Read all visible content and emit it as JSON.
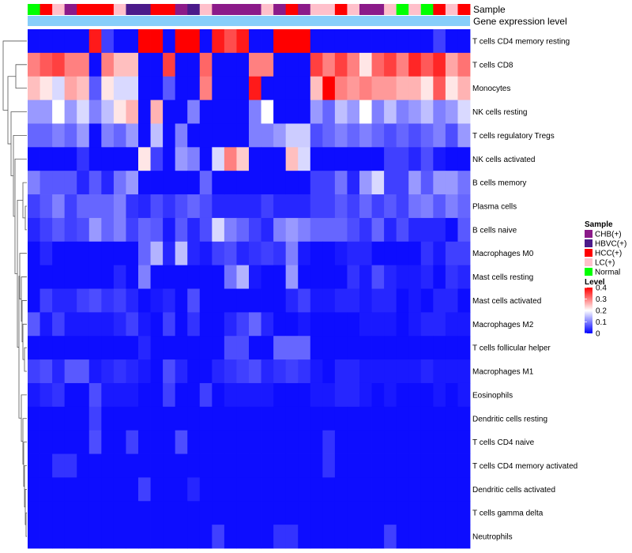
{
  "chart_data": {
    "type": "heatmap",
    "title": "",
    "annotation_labels": [
      "Sample",
      "Gene expression level"
    ],
    "sample_groups": [
      {
        "name": "CHB(+)",
        "color": "#8B1A89"
      },
      {
        "name": "HBVC(+)",
        "color": "#4B1A8A"
      },
      {
        "name": "HCC(+)",
        "color": "#FF0000"
      },
      {
        "name": "LC(+)",
        "color": "#FFC0CB"
      },
      {
        "name": "Normal",
        "color": "#00FF00"
      }
    ],
    "sample_legend_title": "Sample",
    "level_legend_title": "Level",
    "level_ticks": [
      "0.4",
      "0.3",
      "0.2",
      "0.1",
      "0"
    ],
    "level_range": [
      0,
      0.4
    ],
    "level_colors": {
      "low": "#0000FF",
      "mid": "#FFFFFF",
      "high": "#FF0000"
    },
    "expression_bar_color": "#87CEFA",
    "sample_annotation": [
      4,
      2,
      3,
      0,
      2,
      2,
      2,
      3,
      1,
      1,
      2,
      2,
      0,
      1,
      3,
      0,
      0,
      0,
      0,
      3,
      0,
      2,
      0,
      3,
      3,
      2,
      3,
      0,
      0,
      3,
      4,
      3,
      4,
      2,
      3,
      2
    ],
    "rows": [
      "T cells CD4 memory resting",
      "T cells CD8",
      "Monocytes",
      "NK cells resting",
      "T cells regulatory  Tregs",
      "NK cells activated",
      "B cells memory",
      "Plasma cells",
      "B cells naive",
      "Macrophages M0",
      "Mast cells resting",
      "Mast cells activated",
      "Macrophages M2",
      "T cells follicular helper",
      "Macrophages M1",
      "Eosinophils",
      "Dendritic cells resting",
      "T cells CD4 naive",
      "T cells CD4 memory activated",
      "Dendritic cells activated",
      "T cells gamma delta",
      "Neutrophils"
    ],
    "values": [
      [
        0.01,
        0.01,
        0.01,
        0.01,
        0.01,
        0.38,
        0.05,
        0.01,
        0.01,
        0.4,
        0.4,
        0.01,
        0.4,
        0.4,
        0.01,
        0.38,
        0.34,
        0.38,
        0.01,
        0.01,
        0.4,
        0.4,
        0.4,
        0.01,
        0.01,
        0.01,
        0.01,
        0.01,
        0.01,
        0.01,
        0.01,
        0.01,
        0.01,
        0.05,
        0.01,
        0.01
      ],
      [
        0.3,
        0.33,
        0.35,
        0.3,
        0.3,
        0.01,
        0.3,
        0.25,
        0.25,
        0.01,
        0.01,
        0.35,
        0.01,
        0.01,
        0.32,
        0.01,
        0.01,
        0.01,
        0.3,
        0.3,
        0.01,
        0.01,
        0.01,
        0.35,
        0.3,
        0.35,
        0.3,
        0.22,
        0.32,
        0.35,
        0.3,
        0.37,
        0.33,
        0.37,
        0.27,
        0.31
      ],
      [
        0.25,
        0.22,
        0.17,
        0.27,
        0.25,
        0.07,
        0.22,
        0.17,
        0.17,
        0.01,
        0.01,
        0.07,
        0.01,
        0.01,
        0.3,
        0.01,
        0.01,
        0.01,
        0.38,
        0.01,
        0.01,
        0.01,
        0.01,
        0.25,
        0.4,
        0.3,
        0.28,
        0.3,
        0.28,
        0.28,
        0.26,
        0.26,
        0.22,
        0.33,
        0.22,
        0.26
      ],
      [
        0.12,
        0.12,
        0.2,
        0.12,
        0.17,
        0.1,
        0.15,
        0.22,
        0.26,
        0.01,
        0.26,
        0.01,
        0.01,
        0.1,
        0.01,
        0.01,
        0.01,
        0.01,
        0.1,
        0.2,
        0.01,
        0.01,
        0.01,
        0.12,
        0.08,
        0.15,
        0.12,
        0.2,
        0.1,
        0.15,
        0.1,
        0.12,
        0.15,
        0.1,
        0.12,
        0.17
      ],
      [
        0.08,
        0.08,
        0.1,
        0.08,
        0.12,
        0.01,
        0.1,
        0.08,
        0.12,
        0.01,
        0.15,
        0.01,
        0.1,
        0.01,
        0.01,
        0.01,
        0.01,
        0.01,
        0.1,
        0.1,
        0.12,
        0.16,
        0.16,
        0.06,
        0.08,
        0.1,
        0.08,
        0.1,
        0.08,
        0.06,
        0.08,
        0.06,
        0.08,
        0.1,
        0.06,
        0.12
      ],
      [
        0.01,
        0.01,
        0.01,
        0.01,
        0.04,
        0.01,
        0.01,
        0.01,
        0.01,
        0.22,
        0.05,
        0.01,
        0.12,
        0.1,
        0.01,
        0.17,
        0.3,
        0.24,
        0.01,
        0.01,
        0.01,
        0.25,
        0.17,
        0.01,
        0.01,
        0.01,
        0.01,
        0.01,
        0.01,
        0.05,
        0.05,
        0.03,
        0.06,
        0.02,
        0.01,
        0.01
      ],
      [
        0.1,
        0.07,
        0.07,
        0.07,
        0.03,
        0.07,
        0.03,
        0.09,
        0.12,
        0.01,
        0.01,
        0.01,
        0.01,
        0.01,
        0.08,
        0.01,
        0.01,
        0.01,
        0.01,
        0.01,
        0.01,
        0.01,
        0.01,
        0.05,
        0.05,
        0.09,
        0.03,
        0.12,
        0.17,
        0.05,
        0.05,
        0.12,
        0.07,
        0.12,
        0.12,
        0.09
      ],
      [
        0.05,
        0.07,
        0.1,
        0.05,
        0.08,
        0.08,
        0.08,
        0.1,
        0.04,
        0.03,
        0.06,
        0.04,
        0.06,
        0.08,
        0.06,
        0.03,
        0.03,
        0.03,
        0.03,
        0.05,
        0.03,
        0.03,
        0.03,
        0.05,
        0.05,
        0.07,
        0.05,
        0.08,
        0.05,
        0.07,
        0.05,
        0.09,
        0.1,
        0.07,
        0.1,
        0.08
      ],
      [
        0.03,
        0.05,
        0.07,
        0.05,
        0.06,
        0.12,
        0.08,
        0.1,
        0.05,
        0.08,
        0.07,
        0.02,
        0.07,
        0.03,
        0.06,
        0.17,
        0.1,
        0.08,
        0.05,
        0.03,
        0.1,
        0.12,
        0.1,
        0.08,
        0.08,
        0.08,
        0.06,
        0.04,
        0.08,
        0.03,
        0.06,
        0.03,
        0.03,
        0.03,
        0.01,
        0.07
      ],
      [
        0.01,
        0.03,
        0.01,
        0.01,
        0.01,
        0.01,
        0.01,
        0.01,
        0.01,
        0.08,
        0.14,
        0.03,
        0.15,
        0.03,
        0.02,
        0.05,
        0.06,
        0.03,
        0.04,
        0.05,
        0.04,
        0.1,
        0.02,
        0.01,
        0.01,
        0.02,
        0.03,
        0.03,
        0.01,
        0.01,
        0.01,
        0.01,
        0.04,
        0.02,
        0.05,
        0.05
      ],
      [
        0.01,
        0.01,
        0.01,
        0.01,
        0.01,
        0.01,
        0.01,
        0.03,
        0.01,
        0.1,
        0.01,
        0.01,
        0.01,
        0.01,
        0.01,
        0.01,
        0.09,
        0.14,
        0.02,
        0.01,
        0.01,
        0.12,
        0.01,
        0.01,
        0.01,
        0.01,
        0.04,
        0.02,
        0.06,
        0.03,
        0.02,
        0.02,
        0.03,
        0.01,
        0.04,
        0.03
      ],
      [
        0.01,
        0.05,
        0.03,
        0.03,
        0.05,
        0.06,
        0.04,
        0.05,
        0.03,
        0.01,
        0.02,
        0.03,
        0.01,
        0.06,
        0.01,
        0.01,
        0.01,
        0.01,
        0.01,
        0.01,
        0.01,
        0.03,
        0.05,
        0.02,
        0.02,
        0.03,
        0.03,
        0.02,
        0.03,
        0.03,
        0.01,
        0.02,
        0.01,
        0.03,
        0.03,
        0.01
      ],
      [
        0.07,
        0.02,
        0.05,
        0.02,
        0.02,
        0.02,
        0.02,
        0.03,
        0.05,
        0.02,
        0.01,
        0.05,
        0.01,
        0.04,
        0.01,
        0.01,
        0.03,
        0.05,
        0.08,
        0.03,
        0.01,
        0.01,
        0.02,
        0.01,
        0.01,
        0.01,
        0.01,
        0.02,
        0.02,
        0.02,
        0.01,
        0.02,
        0.03,
        0.03,
        0.02,
        0.02
      ],
      [
        0.01,
        0.01,
        0.01,
        0.01,
        0.01,
        0.01,
        0.01,
        0.01,
        0.01,
        0.03,
        0.01,
        0.01,
        0.01,
        0.01,
        0.01,
        0.01,
        0.06,
        0.06,
        0.01,
        0.01,
        0.08,
        0.08,
        0.08,
        0.01,
        0.01,
        0.01,
        0.01,
        0.01,
        0.01,
        0.01,
        0.01,
        0.01,
        0.01,
        0.01,
        0.01,
        0.01
      ],
      [
        0.05,
        0.06,
        0.03,
        0.07,
        0.07,
        0.02,
        0.03,
        0.04,
        0.03,
        0.02,
        0.01,
        0.06,
        0.03,
        0.01,
        0.01,
        0.03,
        0.04,
        0.05,
        0.06,
        0.03,
        0.04,
        0.05,
        0.04,
        0.02,
        0.01,
        0.03,
        0.03,
        0.02,
        0.02,
        0.02,
        0.02,
        0.02,
        0.03,
        0.02,
        0.02,
        0.02
      ],
      [
        0.02,
        0.03,
        0.04,
        0.01,
        0.01,
        0.06,
        0.02,
        0.02,
        0.02,
        0.01,
        0.01,
        0.05,
        0.01,
        0.01,
        0.05,
        0.01,
        0.02,
        0.02,
        0.02,
        0.02,
        0.01,
        0.01,
        0.01,
        0.02,
        0.02,
        0.03,
        0.03,
        0.02,
        0.01,
        0.02,
        0.01,
        0.01,
        0.01,
        0.02,
        0.01,
        0.02
      ],
      [
        0.01,
        0.01,
        0.01,
        0.01,
        0.01,
        0.05,
        0.01,
        0.01,
        0.01,
        0.01,
        0.01,
        0.01,
        0.01,
        0.01,
        0.01,
        0.01,
        0.01,
        0.01,
        0.01,
        0.01,
        0.01,
        0.01,
        0.01,
        0.01,
        0.01,
        0.01,
        0.01,
        0.01,
        0.01,
        0.01,
        0.01,
        0.01,
        0.01,
        0.01,
        0.01,
        0.01
      ],
      [
        0.01,
        0.01,
        0.01,
        0.01,
        0.01,
        0.06,
        0.01,
        0.01,
        0.05,
        0.01,
        0.01,
        0.01,
        0.06,
        0.01,
        0.01,
        0.01,
        0.01,
        0.01,
        0.01,
        0.01,
        0.01,
        0.01,
        0.01,
        0.01,
        0.04,
        0.01,
        0.01,
        0.01,
        0.01,
        0.01,
        0.01,
        0.01,
        0.01,
        0.01,
        0.01,
        0.01
      ],
      [
        0.01,
        0.01,
        0.04,
        0.04,
        0.01,
        0.01,
        0.01,
        0.01,
        0.01,
        0.01,
        0.01,
        0.01,
        0.01,
        0.01,
        0.01,
        0.01,
        0.01,
        0.01,
        0.01,
        0.01,
        0.01,
        0.01,
        0.01,
        0.01,
        0.04,
        0.01,
        0.01,
        0.01,
        0.01,
        0.01,
        0.01,
        0.01,
        0.01,
        0.01,
        0.01,
        0.01
      ],
      [
        0.01,
        0.01,
        0.01,
        0.01,
        0.01,
        0.01,
        0.01,
        0.01,
        0.01,
        0.05,
        0.01,
        0.01,
        0.01,
        0.03,
        0.01,
        0.01,
        0.01,
        0.01,
        0.01,
        0.01,
        0.01,
        0.01,
        0.01,
        0.01,
        0.01,
        0.01,
        0.01,
        0.01,
        0.01,
        0.01,
        0.01,
        0.01,
        0.01,
        0.01,
        0.01,
        0.01
      ],
      [
        0.01,
        0.01,
        0.01,
        0.01,
        0.01,
        0.01,
        0.01,
        0.01,
        0.01,
        0.01,
        0.01,
        0.01,
        0.01,
        0.01,
        0.01,
        0.01,
        0.01,
        0.01,
        0.01,
        0.01,
        0.01,
        0.01,
        0.01,
        0.01,
        0.01,
        0.01,
        0.01,
        0.01,
        0.01,
        0.01,
        0.01,
        0.01,
        0.01,
        0.01,
        0.01,
        0.01
      ],
      [
        0.01,
        0.01,
        0.01,
        0.01,
        0.01,
        0.01,
        0.01,
        0.01,
        0.01,
        0.01,
        0.01,
        0.01,
        0.01,
        0.01,
        0.01,
        0.05,
        0.01,
        0.01,
        0.01,
        0.01,
        0.04,
        0.04,
        0.01,
        0.01,
        0.01,
        0.01,
        0.01,
        0.01,
        0.01,
        0.05,
        0.01,
        0.01,
        0.01,
        0.01,
        0.01,
        0.01
      ]
    ]
  }
}
